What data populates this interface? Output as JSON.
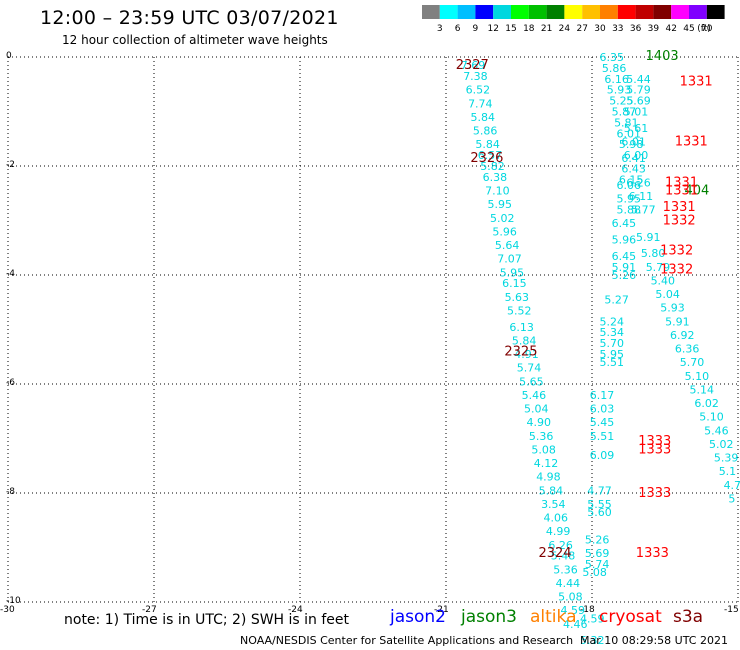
{
  "header": {
    "title": "12:00 – 23:59 UTC 03/07/2021",
    "subtitle": "12 hour collection of altimeter wave heights"
  },
  "colorbar": {
    "labels": [
      "3",
      "6",
      "9",
      "12",
      "15",
      "18",
      "21",
      "24",
      "27",
      "30",
      "33",
      "36",
      "39",
      "42",
      "45",
      "70"
    ],
    "unit": "(ft)",
    "colors": [
      "#808080",
      "#00ffff",
      "#00bfff",
      "#0000ff",
      "#00d7df",
      "#00ff00",
      "#00c000",
      "#008000",
      "#ffff00",
      "#ffc000",
      "#ff8000",
      "#ff0000",
      "#c00000",
      "#800000",
      "#ff00ff",
      "#8000ff",
      "#000000"
    ]
  },
  "chart_data": {
    "type": "map",
    "xlim": [
      -30,
      -15
    ],
    "ylim": [
      -10,
      0
    ],
    "x_ticks": [
      "-30",
      "-27",
      "-24",
      "-21",
      "-18",
      "-15"
    ],
    "y_ticks": [
      "0",
      "-2",
      "-4",
      "-6",
      "-8",
      "-10"
    ],
    "passes": [
      {
        "label": "2327",
        "color": "#800000",
        "lon": -20.8,
        "lat": -0.15
      },
      {
        "label": "2326",
        "color": "#800000",
        "lon": -20.5,
        "lat": -1.85
      },
      {
        "label": "2325",
        "color": "#800000",
        "lon": -19.8,
        "lat": -5.4
      },
      {
        "label": "2324",
        "color": "#800000",
        "lon": -19.1,
        "lat": -9.1
      },
      {
        "label": "1403",
        "color": "#008000",
        "lon": -16.9,
        "lat": 0.02
      },
      {
        "label": "404",
        "color": "#008000",
        "lon": -16.1,
        "lat": -2.45
      },
      {
        "label": "1331",
        "color": "#ff0000",
        "lon": -16.2,
        "lat": -0.45
      },
      {
        "label": "1331",
        "color": "#ff0000",
        "lon": -16.3,
        "lat": -1.55
      },
      {
        "label": "1331",
        "color": "#ff0000",
        "lon": -16.5,
        "lat": -2.3
      },
      {
        "label": "1331",
        "color": "#ff0000",
        "lon": -16.5,
        "lat": -2.45
      },
      {
        "label": "1331",
        "color": "#ff0000",
        "lon": -16.55,
        "lat": -2.75
      },
      {
        "label": "1332",
        "color": "#ff0000",
        "lon": -16.55,
        "lat": -3.0
      },
      {
        "label": "1332",
        "color": "#ff0000",
        "lon": -16.6,
        "lat": -3.55
      },
      {
        "label": "1332",
        "color": "#ff0000",
        "lon": -16.6,
        "lat": -3.9
      },
      {
        "label": "1333",
        "color": "#ff0000",
        "lon": -17.05,
        "lat": -7.05
      },
      {
        "label": "1333",
        "color": "#ff0000",
        "lon": -17.05,
        "lat": -7.2
      },
      {
        "label": "1333",
        "color": "#ff0000",
        "lon": -17.05,
        "lat": -8.0
      },
      {
        "label": "1333",
        "color": "#ff0000",
        "lon": -17.1,
        "lat": -9.1
      }
    ],
    "tracks": [
      {
        "points": [
          [
            -20.45,
            -0.15,
            "7.69"
          ],
          [
            -20.4,
            -0.35,
            "7.38"
          ],
          [
            -20.35,
            -0.6,
            "6.52"
          ],
          [
            -20.3,
            -0.85,
            "7.74"
          ],
          [
            -20.25,
            -1.1,
            "5.84"
          ],
          [
            -20.2,
            -1.35,
            "5.86"
          ],
          [
            -20.15,
            -1.6,
            "5.84"
          ],
          [
            -20.1,
            -1.8,
            "6.57"
          ],
          [
            -20.05,
            -2.0,
            "5.82"
          ],
          [
            -20.0,
            -2.2,
            "6.38"
          ],
          [
            -19.95,
            -2.45,
            "7.10"
          ],
          [
            -19.9,
            -2.7,
            "5.95"
          ],
          [
            -19.85,
            -2.95,
            "5.02"
          ],
          [
            -19.8,
            -3.2,
            "5.96"
          ],
          [
            -19.75,
            -3.45,
            "5.64"
          ],
          [
            -19.7,
            -3.7,
            "7.07"
          ],
          [
            -19.65,
            -3.95,
            "5.95"
          ],
          [
            -19.6,
            -4.15,
            "6.15"
          ],
          [
            -19.55,
            -4.4,
            "5.63"
          ],
          [
            -19.5,
            -4.65,
            "5.52"
          ],
          [
            -19.45,
            -4.95,
            "6.13"
          ],
          [
            -19.4,
            -5.2,
            "5.84"
          ],
          [
            -19.35,
            -5.45,
            "4.91"
          ],
          [
            -19.3,
            -5.7,
            "5.74"
          ],
          [
            -19.25,
            -5.95,
            "5.65"
          ],
          [
            -19.2,
            -6.2,
            "5.46"
          ],
          [
            -19.15,
            -6.45,
            "5.04"
          ],
          [
            -19.1,
            -6.7,
            "4.90"
          ],
          [
            -19.05,
            -6.95,
            "5.36"
          ],
          [
            -19.0,
            -7.2,
            "5.08"
          ],
          [
            -18.95,
            -7.45,
            "4.12"
          ],
          [
            -18.9,
            -7.7,
            "4.98"
          ],
          [
            -18.85,
            -7.95,
            "5.84"
          ],
          [
            -18.8,
            -8.2,
            "3.54"
          ],
          [
            -18.75,
            -8.45,
            "4.06"
          ],
          [
            -18.7,
            -8.7,
            "4.99"
          ],
          [
            -18.65,
            -8.95,
            "6.26"
          ],
          [
            -18.6,
            -9.15,
            "5.48"
          ],
          [
            -18.55,
            -9.4,
            "5.36"
          ],
          [
            -18.5,
            -9.65,
            "4.44"
          ],
          [
            -18.45,
            -9.9,
            "5.08"
          ],
          [
            -18.4,
            -10.15,
            "4.59"
          ],
          [
            -18.35,
            -10.4,
            "4.46"
          ]
        ]
      },
      {
        "points": [
          [
            -17.6,
            0.0,
            "6.35"
          ],
          [
            -17.55,
            -0.2,
            "5.86"
          ],
          [
            -17.5,
            -0.4,
            "6.16"
          ],
          [
            -17.45,
            -0.6,
            "5.93"
          ],
          [
            -17.4,
            -0.8,
            "5.25"
          ],
          [
            -17.35,
            -1.0,
            "5.87"
          ],
          [
            -17.3,
            -1.2,
            "5.81"
          ],
          [
            -17.25,
            -1.4,
            "6.01"
          ],
          [
            -17.2,
            -1.6,
            "5.98"
          ],
          [
            -17.15,
            -1.85,
            "6.41"
          ],
          [
            -17.15,
            -2.05,
            "6.43"
          ],
          [
            -17.2,
            -2.25,
            "6.15"
          ],
          [
            -17.25,
            -2.35,
            "6.06"
          ],
          [
            -17.25,
            -2.6,
            "5.95"
          ],
          [
            -17.25,
            -2.8,
            "5.88"
          ],
          [
            -17.35,
            -3.05,
            "6.45"
          ],
          [
            -17.35,
            -3.35,
            "5.96"
          ],
          [
            -17.35,
            -3.65,
            "6.45"
          ],
          [
            -17.35,
            -3.85,
            "5.91"
          ],
          [
            -17.35,
            -4.0,
            "5.26"
          ],
          [
            -17.5,
            -4.45,
            "5.27"
          ],
          [
            -17.6,
            -4.85,
            "5.24"
          ],
          [
            -17.6,
            -5.05,
            "5.34"
          ],
          [
            -17.6,
            -5.25,
            "5.70"
          ],
          [
            -17.6,
            -5.45,
            "5.95"
          ],
          [
            -17.6,
            -5.6,
            "5.51"
          ],
          [
            -17.8,
            -6.2,
            "6.17"
          ],
          [
            -17.8,
            -6.45,
            "6.03"
          ],
          [
            -17.8,
            -6.7,
            "5.45"
          ],
          [
            -17.8,
            -6.95,
            "5.51"
          ],
          [
            -17.8,
            -7.3,
            "6.09"
          ],
          [
            -17.85,
            -7.95,
            "4.77"
          ],
          [
            -17.85,
            -8.2,
            "5.55"
          ],
          [
            -17.85,
            -8.35,
            "5.60"
          ],
          [
            -17.9,
            -8.85,
            "5.26"
          ],
          [
            -17.9,
            -9.1,
            "5.69"
          ],
          [
            -17.9,
            -9.3,
            "5.74"
          ],
          [
            -17.95,
            -9.45,
            "5.08"
          ],
          [
            -18.0,
            -10.3,
            "4.59"
          ],
          [
            -18.0,
            -10.7,
            "5.32"
          ]
        ]
      },
      {
        "points": [
          [
            -17.05,
            -0.4,
            "5.44"
          ],
          [
            -17.05,
            -0.6,
            "5.79"
          ],
          [
            -17.05,
            -0.8,
            "5.69"
          ],
          [
            -17.1,
            -1.0,
            "5.01"
          ],
          [
            -17.1,
            -1.3,
            "5.61"
          ],
          [
            -17.15,
            -1.55,
            "6.01"
          ],
          [
            -17.1,
            -1.8,
            "6.00"
          ],
          [
            -17.05,
            -2.3,
            "6.26"
          ],
          [
            -17.0,
            -2.55,
            "6.11"
          ],
          [
            -16.95,
            -2.8,
            "5.77"
          ],
          [
            -16.85,
            -3.3,
            "5.91"
          ],
          [
            -16.75,
            -3.6,
            "5.80"
          ],
          [
            -16.65,
            -3.85,
            "5.79"
          ],
          [
            -16.55,
            -4.1,
            "5.40"
          ],
          [
            -16.45,
            -4.35,
            "5.04"
          ],
          [
            -16.35,
            -4.6,
            "5.93"
          ],
          [
            -16.25,
            -4.85,
            "5.91"
          ],
          [
            -16.15,
            -5.1,
            "6.92"
          ],
          [
            -16.05,
            -5.35,
            "6.36"
          ],
          [
            -15.95,
            -5.6,
            "5.70"
          ],
          [
            -15.85,
            -5.85,
            "5.10"
          ],
          [
            -15.75,
            -6.1,
            "5.14"
          ],
          [
            -15.65,
            -6.35,
            "6.02"
          ],
          [
            -15.55,
            -6.6,
            "5.10"
          ],
          [
            -15.45,
            -6.85,
            "5.46"
          ],
          [
            -15.35,
            -7.1,
            "5.02"
          ],
          [
            -15.25,
            -7.35,
            "5.39"
          ],
          [
            -15.15,
            -7.6,
            "5.1"
          ],
          [
            -15.05,
            -7.85,
            "4.7"
          ],
          [
            -14.95,
            -8.1,
            "5"
          ]
        ]
      }
    ]
  },
  "footer": {
    "note": "note: 1) Time is in UTC; 2) SWH is in feet",
    "missions": [
      {
        "label": "jason2",
        "color": "#0000ff"
      },
      {
        "label": "jason3",
        "color": "#008000"
      },
      {
        "label": "altika",
        "color": "#ff8000"
      },
      {
        "label": "cryosat",
        "color": "#ff0000"
      },
      {
        "label": "s3a",
        "color": "#800000"
      }
    ],
    "credit": "NOAA/NESDIS Center for Satellite Applications and Research",
    "date": "Mar 10 08:29:58 UTC 2021"
  }
}
